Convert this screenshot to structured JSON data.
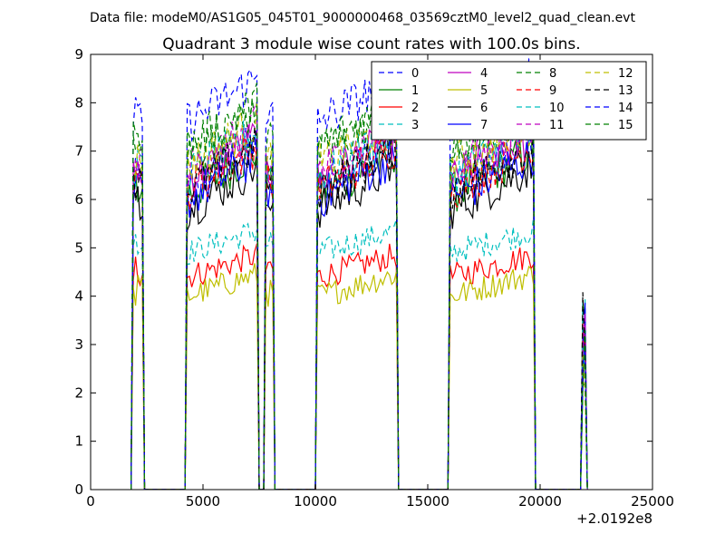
{
  "suptitle": "Data file: modeM0/AS1G05_045T01_9000000468_03569cztM0_level2_quad_clean.evt",
  "chart_data": {
    "type": "line",
    "title": "Quadrant 3 module wise count rates with 100.0s bins.",
    "xlabel": "",
    "ylabel": "",
    "xlim": [
      0,
      25000
    ],
    "ylim": [
      0,
      9
    ],
    "x_offset_label": "+2.0192e8",
    "x_ticks": [
      "0",
      "5000",
      "10000",
      "15000",
      "20000",
      "25000"
    ],
    "y_ticks": [
      "0",
      "1",
      "2",
      "3",
      "4",
      "5",
      "6",
      "7",
      "8",
      "9"
    ],
    "grid": false,
    "legend_position": "top-right",
    "legend_columns": 4,
    "segments": [
      {
        "start": 1900,
        "end": 2300
      },
      {
        "start": 4300,
        "end": 7400
      },
      {
        "start": 7800,
        "end": 8100
      },
      {
        "start": 10100,
        "end": 13600
      },
      {
        "start": 16000,
        "end": 19700
      },
      {
        "start": 21900,
        "end": 22000
      }
    ],
    "series": [
      {
        "name": "0",
        "color": "#0000ff",
        "dash": "dashed",
        "level": 6.3
      },
      {
        "name": "1",
        "color": "#008000",
        "dash": "solid",
        "level": 6.1
      },
      {
        "name": "2",
        "color": "#ff0000",
        "dash": "solid",
        "level": 4.4
      },
      {
        "name": "3",
        "color": "#00bfbf",
        "dash": "dashed",
        "level": 4.9
      },
      {
        "name": "4",
        "color": "#bf00bf",
        "dash": "solid",
        "level": 6.4
      },
      {
        "name": "5",
        "color": "#bfbf00",
        "dash": "solid",
        "level": 4.0
      },
      {
        "name": "6",
        "color": "#000000",
        "dash": "solid",
        "level": 5.8
      },
      {
        "name": "7",
        "color": "#0000ff",
        "dash": "solid",
        "level": 6.0
      },
      {
        "name": "8",
        "color": "#008000",
        "dash": "dashed",
        "level": 6.9
      },
      {
        "name": "9",
        "color": "#ff0000",
        "dash": "dashed",
        "level": 6.2
      },
      {
        "name": "10",
        "color": "#00bfbf",
        "dash": "dashed",
        "level": 6.5
      },
      {
        "name": "11",
        "color": "#bf00bf",
        "dash": "dashed",
        "level": 6.6
      },
      {
        "name": "12",
        "color": "#bfbf00",
        "dash": "dashed",
        "level": 6.7
      },
      {
        "name": "13",
        "color": "#000000",
        "dash": "dashed",
        "level": 6.2
      },
      {
        "name": "14",
        "color": "#0000ff",
        "dash": "dashed",
        "level": 7.6
      },
      {
        "name": "15",
        "color": "#008000",
        "dash": "dashed",
        "level": 7.1
      }
    ]
  }
}
